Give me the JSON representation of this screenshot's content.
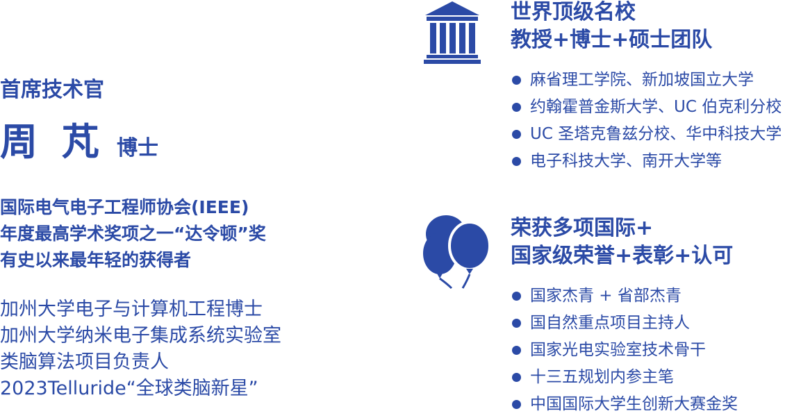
{
  "profile": {
    "role": "首席技术官",
    "name": "周 芃",
    "degree": "博士",
    "honor_lines": [
      "国际电气电子工程师协会(IEEE)",
      "年度最高学术奖项之一“达令顿”奖",
      "有史以来最年轻的获得者"
    ],
    "background_lines": [
      "加州大学电子与计算机工程博士",
      "加州大学纳米电子集成系统实验室",
      "类脑算法项目负责人",
      "2023Telluride“全球类脑新星”"
    ]
  },
  "team_section": {
    "icon": "university-building-icon",
    "heading_lines": [
      "世界顶级名校",
      "教授+博士+硕士团队"
    ],
    "items": [
      "麻省理工学院、新加坡国立大学",
      "约翰霍普金斯大学、UC 伯克利分校",
      "UC 圣塔克鲁兹分校、华中科技大学",
      "电子科技大学、南开大学等"
    ]
  },
  "awards_section": {
    "icon": "balloons-icon",
    "heading_lines": [
      "荣获多项国际+",
      "国家级荣誉+表彰+认可"
    ],
    "items": [
      "国家杰青 + 省部杰青",
      "国自然重点项目主持人",
      "国家光电实验室技术骨干",
      "十三五规划内参主笔",
      "中国国际大学生创新大赛金奖"
    ]
  },
  "colors": {
    "accent": "#2b4aa6"
  }
}
